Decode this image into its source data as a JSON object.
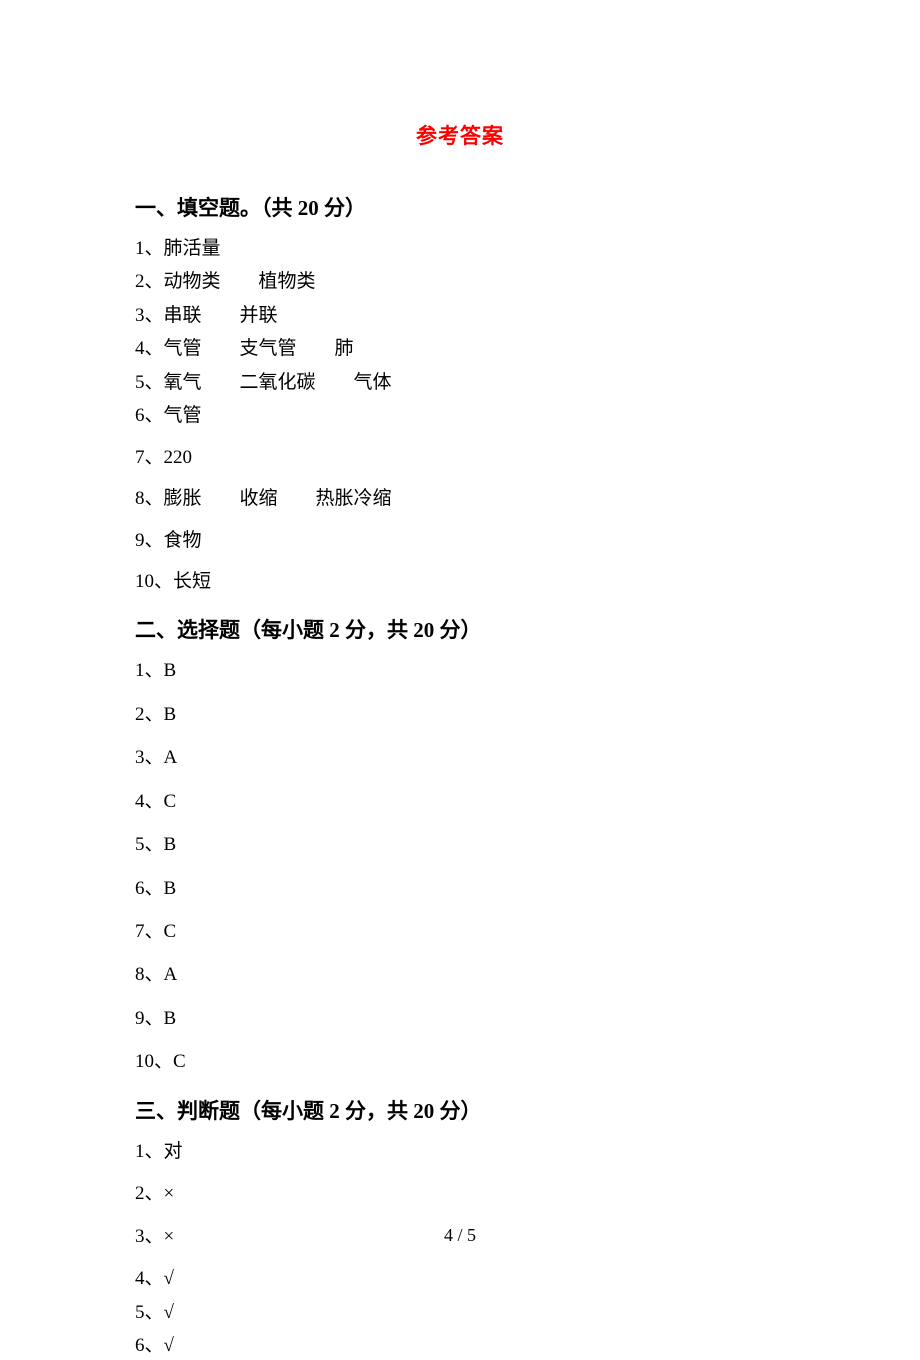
{
  "title": "参考答案",
  "section1": {
    "header": "一、填空题。（共 20 分）",
    "items": [
      "1、肺活量",
      "2、动物类  植物类",
      "3、串联  并联",
      "4、气管  支气管  肺",
      "5、氧气  二氧化碳  气体",
      "6、气管",
      "7、220",
      "8、膨胀  收缩  热胀冷缩",
      "9、食物",
      "10、长短"
    ]
  },
  "section2": {
    "header": "二、选择题（每小题 2 分，共 20 分）",
    "items": [
      "1、B",
      "2、B",
      "3、A",
      "4、C",
      "5、B",
      "6、B",
      "7、C",
      "8、A",
      "9、B",
      "10、C"
    ]
  },
  "section3": {
    "header": "三、判断题（每小题 2 分，共 20 分）",
    "items": [
      "1、对",
      "2、×",
      "3、×",
      "4、√",
      "5、√",
      "6、√"
    ]
  },
  "pageNumber": "4 / 5"
}
